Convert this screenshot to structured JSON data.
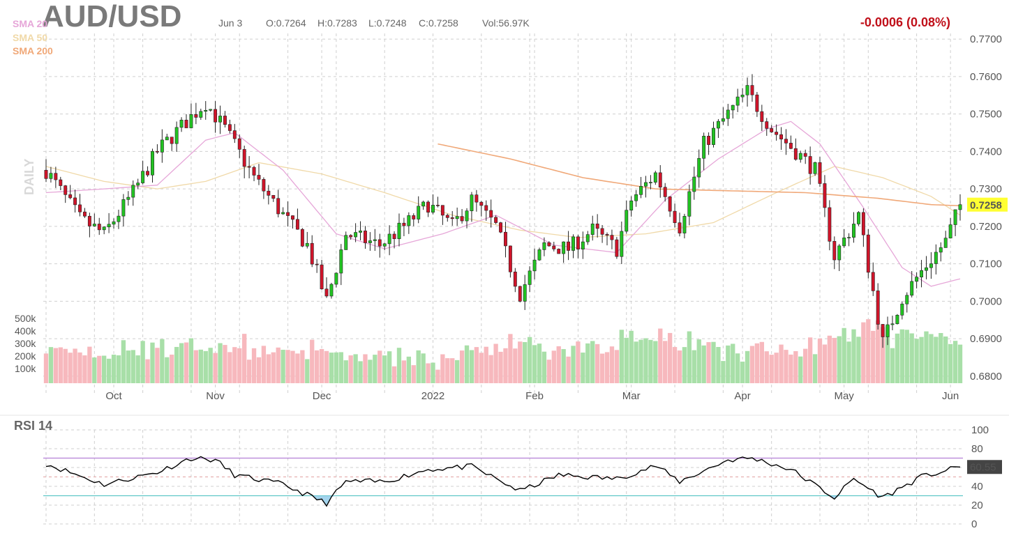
{
  "header": {
    "symbol": "AUD/USD",
    "date": "Jun 3",
    "open": "O:0.7264",
    "high": "H:0.7283",
    "low": "L:0.7248",
    "close": "C:0.7258",
    "volume": "Vol:56.97K",
    "change": "-0.0006 (0.08%)"
  },
  "legend": [
    {
      "label": "SMA 20",
      "color": "#e6a6d8"
    },
    {
      "label": "SMA 50",
      "color": "#f0d9a8"
    },
    {
      "label": "SMA 200",
      "color": "#f0a878"
    }
  ],
  "side_label": "DAILY",
  "rsi_title": "RSI 14",
  "colors": {
    "up": "#22c322",
    "down": "#d0142a",
    "up_vol": "#a8dfa8",
    "down_vol": "#f7b8bd",
    "rsi_line": "#000000",
    "rsi_upper": "#b37fd6",
    "rsi_lower": "#5fc7c7",
    "price_tag": "#ffff33"
  },
  "chart_data": {
    "type": "candlestick",
    "title": "AUD/USD",
    "y_ticks": [
      "0.7700",
      "0.7600",
      "0.7500",
      "0.7400",
      "0.7300",
      "0.7200",
      "0.7100",
      "0.7000",
      "0.6900",
      "0.6800"
    ],
    "ylim": [
      0.6785,
      0.7715
    ],
    "x_labels": [
      "Oct",
      "Nov",
      "Dec",
      "2022",
      "Feb",
      "Mar",
      "Apr",
      "May",
      "Jun"
    ],
    "volume_ticks": [
      "500k",
      "400k",
      "300k",
      "200k",
      "100k"
    ],
    "last_price": "0.7258",
    "last_rsi": "60.55",
    "rsi_ticks": [
      "100",
      "80",
      "60",
      "40",
      "20",
      "0"
    ],
    "rsi_levels": {
      "upper": 70,
      "lower": 30
    },
    "trend_anchors": [
      {
        "x": "Sep 13",
        "y": 0.735
      },
      {
        "x": "Sep 22",
        "y": 0.722
      },
      {
        "x": "Sep 29",
        "y": 0.718
      },
      {
        "x": "Oct 7",
        "y": 0.729
      },
      {
        "x": "Oct 14",
        "y": 0.74
      },
      {
        "x": "Oct 22",
        "y": 0.748
      },
      {
        "x": "Oct 28",
        "y": 0.753
      },
      {
        "x": "Nov 3",
        "y": 0.746
      },
      {
        "x": "Nov 11",
        "y": 0.733
      },
      {
        "x": "Nov 19",
        "y": 0.723
      },
      {
        "x": "Nov 26",
        "y": 0.715
      },
      {
        "x": "Dec 2",
        "y": 0.7
      },
      {
        "x": "Dec 8",
        "y": 0.718
      },
      {
        "x": "Dec 17",
        "y": 0.715
      },
      {
        "x": "Dec 24",
        "y": 0.72
      },
      {
        "x": "Dec 31",
        "y": 0.726
      },
      {
        "x": "Jan 7",
        "y": 0.72
      },
      {
        "x": "Jan 13",
        "y": 0.727
      },
      {
        "x": "Jan 20",
        "y": 0.72
      },
      {
        "x": "Jan 27",
        "y": 0.702
      },
      {
        "x": "Feb 3",
        "y": 0.715
      },
      {
        "x": "Feb 10",
        "y": 0.714
      },
      {
        "x": "Feb 17",
        "y": 0.719
      },
      {
        "x": "Feb 24",
        "y": 0.714
      },
      {
        "x": "Mar 1",
        "y": 0.727
      },
      {
        "x": "Mar 8",
        "y": 0.734
      },
      {
        "x": "Mar 15",
        "y": 0.72
      },
      {
        "x": "Mar 22",
        "y": 0.742
      },
      {
        "x": "Mar 29",
        "y": 0.75
      },
      {
        "x": "Apr 4",
        "y": 0.756
      },
      {
        "x": "Apr 11",
        "y": 0.746
      },
      {
        "x": "Apr 18",
        "y": 0.74
      },
      {
        "x": "Apr 22",
        "y": 0.735
      },
      {
        "x": "Apr 28",
        "y": 0.712
      },
      {
        "x": "May 5",
        "y": 0.723
      },
      {
        "x": "May 12",
        "y": 0.689
      },
      {
        "x": "May 18",
        "y": 0.701
      },
      {
        "x": "May 24",
        "y": 0.708
      },
      {
        "x": "May 31",
        "y": 0.716
      },
      {
        "x": "Jun 3",
        "y": 0.7258
      }
    ],
    "sma20_anchors": [
      {
        "x": "Sep 13",
        "y": 0.729
      },
      {
        "x": "Sep 29",
        "y": 0.73
      },
      {
        "x": "Oct 14",
        "y": 0.731
      },
      {
        "x": "Oct 28",
        "y": 0.743
      },
      {
        "x": "Nov 6",
        "y": 0.745
      },
      {
        "x": "Nov 19",
        "y": 0.735
      },
      {
        "x": "Dec 6",
        "y": 0.718
      },
      {
        "x": "Dec 20",
        "y": 0.714
      },
      {
        "x": "Jan 5",
        "y": 0.718
      },
      {
        "x": "Jan 20",
        "y": 0.723
      },
      {
        "x": "Feb 7",
        "y": 0.715
      },
      {
        "x": "Feb 24",
        "y": 0.713
      },
      {
        "x": "Mar 10",
        "y": 0.727
      },
      {
        "x": "Mar 25",
        "y": 0.738
      },
      {
        "x": "Apr 8",
        "y": 0.746
      },
      {
        "x": "Apr 16",
        "y": 0.748
      },
      {
        "x": "Apr 25",
        "y": 0.742
      },
      {
        "x": "May 6",
        "y": 0.725
      },
      {
        "x": "May 18",
        "y": 0.709
      },
      {
        "x": "May 26",
        "y": 0.704
      },
      {
        "x": "Jun 3",
        "y": 0.706
      }
    ],
    "sma50_anchors": [
      {
        "x": "Sep 13",
        "y": 0.736
      },
      {
        "x": "Sep 29",
        "y": 0.732
      },
      {
        "x": "Oct 14",
        "y": 0.73
      },
      {
        "x": "Oct 28",
        "y": 0.732
      },
      {
        "x": "Nov 12",
        "y": 0.737
      },
      {
        "x": "Dec 1",
        "y": 0.734
      },
      {
        "x": "Dec 20",
        "y": 0.729
      },
      {
        "x": "Jan 8",
        "y": 0.723
      },
      {
        "x": "Jan 27",
        "y": 0.719
      },
      {
        "x": "Feb 14",
        "y": 0.717
      },
      {
        "x": "Mar 4",
        "y": 0.718
      },
      {
        "x": "Mar 24",
        "y": 0.721
      },
      {
        "x": "Apr 12",
        "y": 0.729
      },
      {
        "x": "Apr 28",
        "y": 0.736
      },
      {
        "x": "May 12",
        "y": 0.733
      },
      {
        "x": "May 26",
        "y": 0.728
      },
      {
        "x": "Jun 3",
        "y": 0.723
      }
    ],
    "sma200_anchors": [
      {
        "x": "Jan 4",
        "y": 0.742
      },
      {
        "x": "Jan 25",
        "y": 0.738
      },
      {
        "x": "Feb 15",
        "y": 0.733
      },
      {
        "x": "Mar 8",
        "y": 0.73
      },
      {
        "x": "Mar 29",
        "y": 0.7295
      },
      {
        "x": "Apr 20",
        "y": 0.729
      },
      {
        "x": "May 11",
        "y": 0.7275
      },
      {
        "x": "May 26",
        "y": 0.7258
      },
      {
        "x": "Jun 3",
        "y": 0.7255
      }
    ],
    "volume_range_k": [
      30,
      460
    ],
    "rsi_anchors": [
      {
        "x": "Sep 13",
        "y": 64
      },
      {
        "x": "Sep 29",
        "y": 42
      },
      {
        "x": "Oct 14",
        "y": 55
      },
      {
        "x": "Oct 25",
        "y": 70
      },
      {
        "x": "Oct 31",
        "y": 68
      },
      {
        "x": "Nov 6",
        "y": 52
      },
      {
        "x": "Nov 19",
        "y": 42
      },
      {
        "x": "Dec 2",
        "y": 22
      },
      {
        "x": "Dec 8",
        "y": 45
      },
      {
        "x": "Dec 20",
        "y": 45
      },
      {
        "x": "Dec 31",
        "y": 58
      },
      {
        "x": "Jan 13",
        "y": 61
      },
      {
        "x": "Jan 27",
        "y": 35
      },
      {
        "x": "Feb 8",
        "y": 52
      },
      {
        "x": "Feb 24",
        "y": 48
      },
      {
        "x": "Mar 8",
        "y": 62
      },
      {
        "x": "Mar 15",
        "y": 45
      },
      {
        "x": "Mar 29",
        "y": 68
      },
      {
        "x": "Apr 5",
        "y": 70
      },
      {
        "x": "Apr 15",
        "y": 58
      },
      {
        "x": "Apr 28",
        "y": 28
      },
      {
        "x": "May 4",
        "y": 48
      },
      {
        "x": "May 12",
        "y": 28
      },
      {
        "x": "May 24",
        "y": 50
      },
      {
        "x": "Jun 3",
        "y": 60.55
      }
    ]
  }
}
